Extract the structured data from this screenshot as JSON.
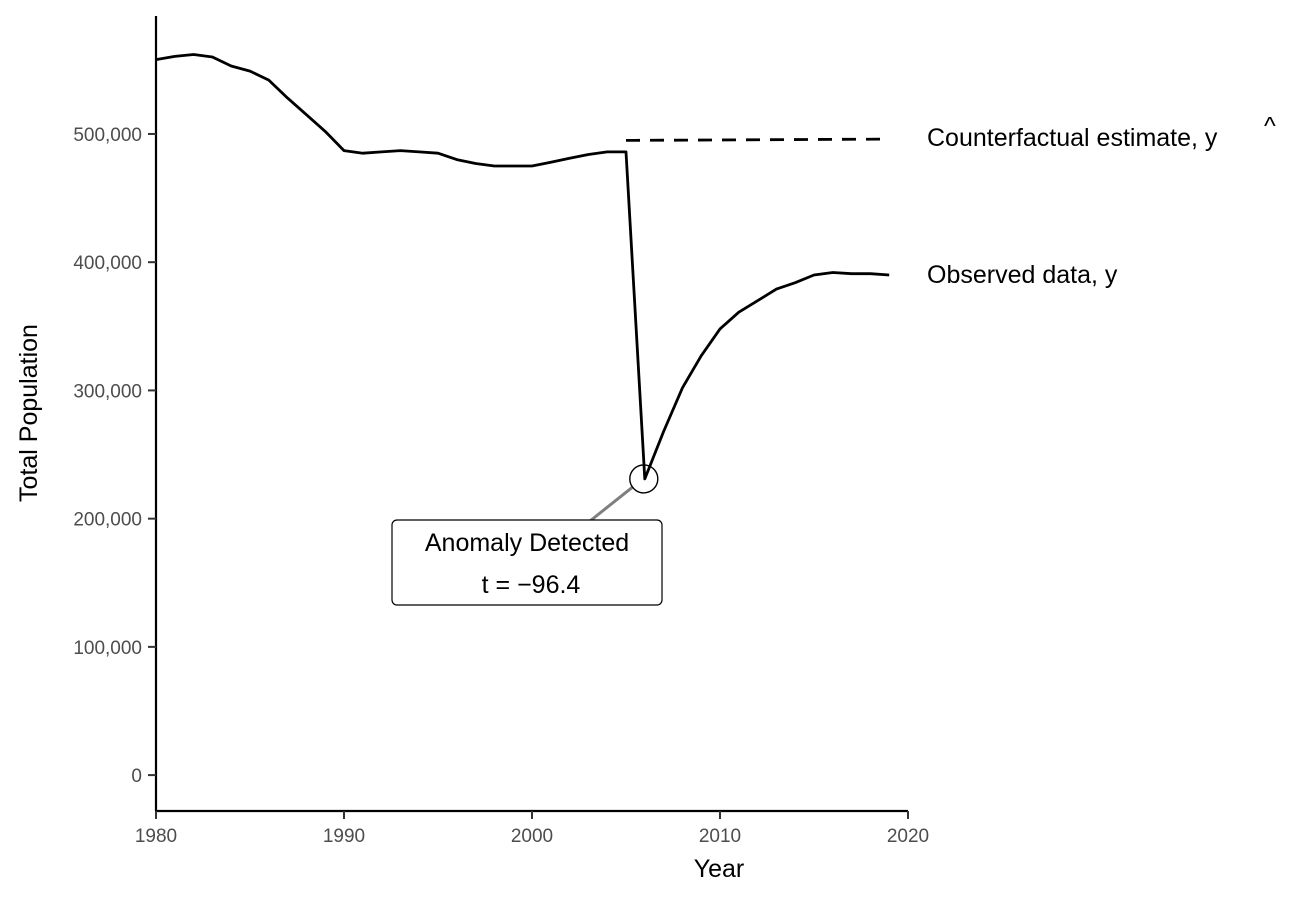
{
  "chart_data": {
    "type": "line",
    "title": "",
    "xlabel": "Year",
    "ylabel": "Total Population",
    "xlim": [
      1980,
      2020
    ],
    "ylim": [
      -28000,
      592000
    ],
    "x_ticks": [
      1980,
      1990,
      2000,
      2010,
      2020
    ],
    "x_tick_labels": [
      "1980",
      "1990",
      "2000",
      "2010",
      "2020"
    ],
    "y_ticks": [
      0,
      100000,
      200000,
      300000,
      400000,
      500000
    ],
    "y_tick_labels": [
      "0",
      "100,000",
      "200,000",
      "300,000",
      "400,000",
      "500,000"
    ],
    "grid": false,
    "legend": "none",
    "series": [
      {
        "name": "Observed data, y",
        "style": "solid",
        "color": "#000000",
        "x": [
          1980,
          1981,
          1982,
          1983,
          1984,
          1985,
          1986,
          1987,
          1988,
          1989,
          1990,
          1991,
          1992,
          1993,
          1994,
          1995,
          1996,
          1997,
          1998,
          1999,
          2000,
          2001,
          2002,
          2003,
          2004,
          2005,
          2006,
          2007,
          2008,
          2009,
          2010,
          2011,
          2012,
          2013,
          2014,
          2015,
          2016,
          2017,
          2018,
          2019
        ],
        "y": [
          558000,
          560500,
          562000,
          560000,
          553000,
          549000,
          542000,
          528000,
          515000,
          502000,
          487000,
          485000,
          486000,
          487000,
          486000,
          485000,
          480000,
          477000,
          475000,
          475000,
          475000,
          478000,
          481000,
          484000,
          486000,
          486000,
          231000,
          268000,
          302000,
          327000,
          348000,
          361000,
          370000,
          379000,
          384000,
          390000,
          392000,
          391000,
          391000,
          390000
        ]
      },
      {
        "name": "Counterfactual estimate, ŷ",
        "style": "dashed",
        "color": "#000000",
        "x": [
          2005,
          2019
        ],
        "y": [
          495000,
          496000
        ]
      }
    ],
    "series_labels": {
      "counterfactual_text": "Counterfactual estimate, ",
      "counterfactual_symbol": "y",
      "counterfactual_hat": "^",
      "observed": "Observed data, y"
    },
    "annotation": {
      "x": 2006,
      "y": 231000,
      "line1": "Anomaly Detected",
      "line2": "t = −96.4"
    }
  }
}
